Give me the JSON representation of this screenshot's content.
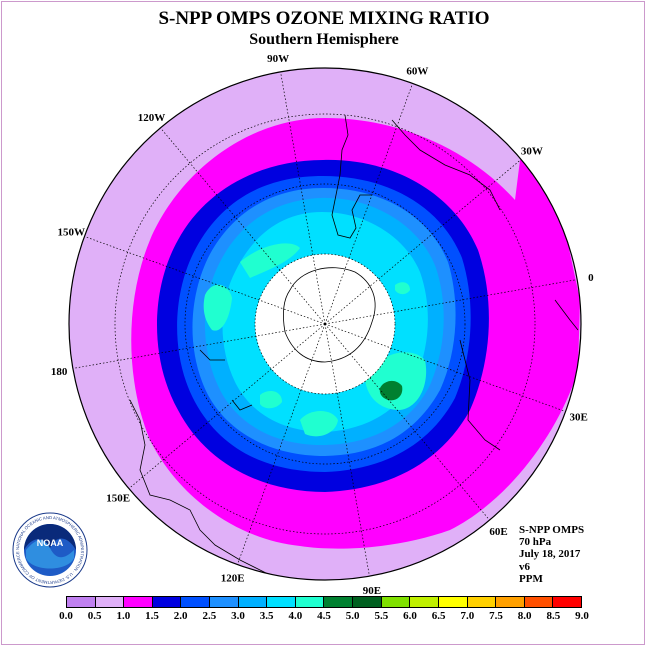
{
  "title": "S-NPP OMPS OZONE MIXING RATIO",
  "subtitle": "Southern Hemisphere",
  "longitude_labels": [
    "90W",
    "60W",
    "30W",
    "0",
    "30E",
    "60E",
    "90E",
    "120E",
    "150E",
    "180",
    "150W",
    "120W"
  ],
  "info": {
    "instrument": "S-NPP OMPS",
    "level": "70 hPa",
    "date": "July 18, 2017",
    "version": "v6",
    "units": "PPM"
  },
  "colorbar": {
    "ticks": [
      "0.0",
      "0.5",
      "1.0",
      "1.5",
      "2.0",
      "2.5",
      "3.0",
      "3.5",
      "4.0",
      "4.5",
      "5.0",
      "5.5",
      "6.0",
      "6.5",
      "7.0",
      "7.5",
      "8.0",
      "8.5",
      "9.0"
    ],
    "colors": [
      "#c080f0",
      "#e0b0f8",
      "#ff00ff",
      "#0000e0",
      "#0050ff",
      "#1e90ff",
      "#00b0ff",
      "#00e0ff",
      "#20ffd0",
      "#008030",
      "#006020",
      "#80e000",
      "#c0f000",
      "#ffff00",
      "#ffd000",
      "#ffa000",
      "#ff5000",
      "#ff0000",
      "#8b5030"
    ]
  },
  "logo": {
    "text": "NOAA",
    "ring_text": "NATIONAL OCEANIC AND ATMOSPHERIC ADMINISTRATION · U.S. DEPARTMENT OF COMMERCE"
  },
  "map": {
    "projection": "south-polar stereographic",
    "missing_data_region": "polar night (white disc)",
    "colors": {
      "outer": "#e0b0f8",
      "mixing_1_0": "#ff00ff",
      "mixing_1_5": "#0000e0",
      "mixing_2_0": "#0050ff",
      "mixing_2_5": "#1e90ff",
      "mixing_3_0": "#00b0ff",
      "mixing_3_5": "#00e0ff",
      "mixing_4_0": "#20ffd0",
      "mixing_4_5": "#008030"
    }
  }
}
